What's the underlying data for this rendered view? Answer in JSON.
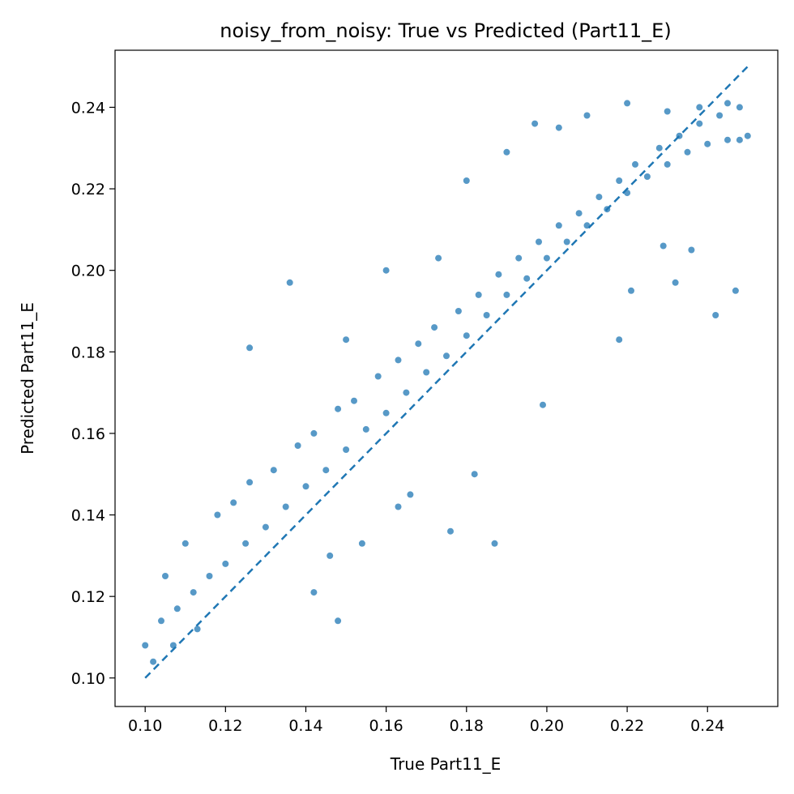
{
  "chart_data": {
    "type": "scatter",
    "title": "noisy_from_noisy: True vs Predicted (Part11_E)",
    "xlabel": "True Part11_E",
    "ylabel": "Predicted Part11_E",
    "xlim": [
      0.0925,
      0.2575
    ],
    "ylim": [
      0.093,
      0.254
    ],
    "xticks": [
      0.1,
      0.12,
      0.14,
      0.16,
      0.18,
      0.2,
      0.22,
      0.24
    ],
    "xtick_labels": [
      "0.10",
      "0.12",
      "0.14",
      "0.16",
      "0.18",
      "0.20",
      "0.22",
      "0.24"
    ],
    "yticks": [
      0.1,
      0.12,
      0.14,
      0.16,
      0.18,
      0.2,
      0.22,
      0.24
    ],
    "ytick_labels": [
      "0.10",
      "0.12",
      "0.14",
      "0.16",
      "0.18",
      "0.20",
      "0.22",
      "0.24"
    ],
    "grid": false,
    "reference_line": {
      "style": "dashed",
      "x": [
        0.1,
        0.25
      ],
      "y": [
        0.1,
        0.25
      ]
    },
    "colors": {
      "points": "#1f77b4",
      "reference_line": "#1f77b4"
    },
    "series": [
      {
        "x": [
          0.1,
          0.104,
          0.108,
          0.112,
          0.116,
          0.12,
          0.125,
          0.13,
          0.135,
          0.14,
          0.145,
          0.15,
          0.155,
          0.16,
          0.165,
          0.17,
          0.175,
          0.18,
          0.185,
          0.19,
          0.195,
          0.2,
          0.205,
          0.21,
          0.215,
          0.22,
          0.225,
          0.23,
          0.235,
          0.24,
          0.245,
          0.25,
          0.105,
          0.11,
          0.118,
          0.122,
          0.126,
          0.132,
          0.138,
          0.142,
          0.148,
          0.152,
          0.158,
          0.163,
          0.168,
          0.172,
          0.178,
          0.183,
          0.188,
          0.193,
          0.198,
          0.203,
          0.208,
          0.213,
          0.218,
          0.222,
          0.228,
          0.233,
          0.238,
          0.243,
          0.248,
          0.102,
          0.107,
          0.113,
          0.126,
          0.136,
          0.15,
          0.16,
          0.173,
          0.18,
          0.19,
          0.197,
          0.203,
          0.21,
          0.22,
          0.23,
          0.238,
          0.245,
          0.248,
          0.221,
          0.232,
          0.242,
          0.247,
          0.236,
          0.229,
          0.218,
          0.187,
          0.176,
          0.166,
          0.146,
          0.154,
          0.163,
          0.142,
          0.148,
          0.182,
          0.199
        ],
        "y": [
          0.108,
          0.114,
          0.117,
          0.121,
          0.125,
          0.128,
          0.133,
          0.137,
          0.142,
          0.147,
          0.151,
          0.156,
          0.161,
          0.165,
          0.17,
          0.175,
          0.179,
          0.184,
          0.189,
          0.194,
          0.198,
          0.203,
          0.207,
          0.211,
          0.215,
          0.219,
          0.223,
          0.226,
          0.229,
          0.231,
          0.232,
          0.233,
          0.125,
          0.133,
          0.14,
          0.143,
          0.148,
          0.151,
          0.157,
          0.16,
          0.166,
          0.168,
          0.174,
          0.178,
          0.182,
          0.186,
          0.19,
          0.194,
          0.199,
          0.203,
          0.207,
          0.211,
          0.214,
          0.218,
          0.222,
          0.226,
          0.23,
          0.233,
          0.236,
          0.238,
          0.24,
          0.104,
          0.108,
          0.112,
          0.181,
          0.197,
          0.183,
          0.2,
          0.203,
          0.222,
          0.229,
          0.236,
          0.235,
          0.238,
          0.241,
          0.239,
          0.24,
          0.241,
          0.232,
          0.195,
          0.197,
          0.189,
          0.195,
          0.205,
          0.206,
          0.183,
          0.133,
          0.136,
          0.145,
          0.13,
          0.133,
          0.142,
          0.121,
          0.114,
          0.15,
          0.167
        ]
      }
    ]
  }
}
